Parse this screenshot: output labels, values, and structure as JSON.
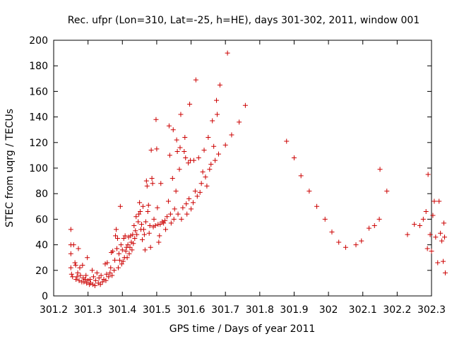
{
  "chart_data": {
    "type": "scatter",
    "title": "Rec. ufpr (Lon=310, Lat=-25, h=HE), days 301-302, 2011, window 001",
    "xlabel": "GPS time / Days of year 2011",
    "ylabel": "STEC from uqrg / TECUs",
    "xlim": [
      301.2,
      302.3
    ],
    "ylim": [
      0,
      200
    ],
    "xticks": [
      "301.2",
      "301.3",
      "301.4",
      "301.5",
      "301.6",
      "301.7",
      "301.8",
      "301.9",
      "302",
      "302.1",
      "302.2",
      "302.3"
    ],
    "yticks": [
      "0",
      "20",
      "40",
      "60",
      "80",
      "100",
      "120",
      "140",
      "160",
      "180",
      "200"
    ],
    "grid": false,
    "legend": "none",
    "marker": "plus",
    "color": "#cc0000",
    "series": [
      {
        "points": [
          [
            301.25,
            52
          ],
          [
            301.25,
            40
          ],
          [
            301.25,
            33
          ],
          [
            301.25,
            22
          ],
          [
            301.252,
            17
          ],
          [
            301.255,
            15
          ],
          [
            301.258,
            40
          ],
          [
            301.262,
            26
          ],
          [
            301.264,
            24
          ],
          [
            301.265,
            13
          ],
          [
            301.268,
            15
          ],
          [
            301.27,
            18
          ],
          [
            301.272,
            37
          ],
          [
            301.274,
            12
          ],
          [
            301.276,
            22
          ],
          [
            301.278,
            16
          ],
          [
            301.282,
            11
          ],
          [
            301.284,
            24
          ],
          [
            301.286,
            14
          ],
          [
            301.288,
            11
          ],
          [
            301.292,
            13
          ],
          [
            301.294,
            16
          ],
          [
            301.296,
            10
          ],
          [
            301.298,
            30
          ],
          [
            301.3,
            12
          ],
          [
            301.304,
            9
          ],
          [
            301.306,
            13
          ],
          [
            301.308,
            10
          ],
          [
            301.312,
            20
          ],
          [
            301.314,
            9
          ],
          [
            301.316,
            15
          ],
          [
            301.32,
            8
          ],
          [
            301.322,
            12
          ],
          [
            301.326,
            18
          ],
          [
            301.33,
            10
          ],
          [
            301.332,
            14
          ],
          [
            301.336,
            9
          ],
          [
            301.338,
            16
          ],
          [
            301.342,
            11
          ],
          [
            301.346,
            13
          ],
          [
            301.35,
            25
          ],
          [
            301.352,
            12
          ],
          [
            301.354,
            17
          ],
          [
            301.356,
            26
          ],
          [
            301.36,
            15
          ],
          [
            301.364,
            18
          ],
          [
            301.366,
            22
          ],
          [
            301.368,
            34
          ],
          [
            301.37,
            16
          ],
          [
            301.372,
            35
          ],
          [
            301.376,
            20
          ],
          [
            301.378,
            28
          ],
          [
            301.38,
            47
          ],
          [
            301.382,
            52
          ],
          [
            301.384,
            37
          ],
          [
            301.386,
            45
          ],
          [
            301.388,
            22
          ],
          [
            301.39,
            33
          ],
          [
            301.392,
            28
          ],
          [
            301.394,
            70
          ],
          [
            301.396,
            40
          ],
          [
            301.398,
            25
          ],
          [
            301.4,
            36
          ],
          [
            301.402,
            27
          ],
          [
            301.404,
            45
          ],
          [
            301.406,
            30
          ],
          [
            301.408,
            47
          ],
          [
            301.41,
            35
          ],
          [
            301.412,
            38
          ],
          [
            301.414,
            30
          ],
          [
            301.416,
            40
          ],
          [
            301.418,
            46
          ],
          [
            301.42,
            33
          ],
          [
            301.422,
            38
          ],
          [
            301.424,
            47
          ],
          [
            301.426,
            42
          ],
          [
            301.428,
            36
          ],
          [
            301.43,
            48
          ],
          [
            301.432,
            41
          ],
          [
            301.434,
            55
          ],
          [
            301.436,
            45
          ],
          [
            301.438,
            51
          ],
          [
            301.44,
            62
          ],
          [
            301.442,
            48
          ],
          [
            301.446,
            58
          ],
          [
            301.448,
            64
          ],
          [
            301.45,
            73
          ],
          [
            301.452,
            66
          ],
          [
            301.454,
            52
          ],
          [
            301.456,
            56
          ],
          [
            301.458,
            44
          ],
          [
            301.46,
            70
          ],
          [
            301.462,
            52
          ],
          [
            301.464,
            48
          ],
          [
            301.466,
            36
          ],
          [
            301.468,
            58
          ],
          [
            301.47,
            90
          ],
          [
            301.472,
            86
          ],
          [
            301.474,
            66
          ],
          [
            301.476,
            71
          ],
          [
            301.478,
            49
          ],
          [
            301.48,
            55
          ],
          [
            301.482,
            38
          ],
          [
            301.484,
            114
          ],
          [
            301.486,
            92
          ],
          [
            301.488,
            88
          ],
          [
            301.49,
            54
          ],
          [
            301.492,
            60
          ],
          [
            301.496,
            55
          ],
          [
            301.498,
            138
          ],
          [
            301.5,
            115
          ],
          [
            301.502,
            69
          ],
          [
            301.504,
            56
          ],
          [
            301.506,
            42
          ],
          [
            301.508,
            47
          ],
          [
            301.51,
            56
          ],
          [
            301.512,
            88
          ],
          [
            301.516,
            58
          ],
          [
            301.52,
            57
          ],
          [
            301.524,
            59
          ],
          [
            301.526,
            52
          ],
          [
            301.53,
            62
          ],
          [
            301.534,
            74
          ],
          [
            301.536,
            133
          ],
          [
            301.538,
            110
          ],
          [
            301.54,
            64
          ],
          [
            301.542,
            57
          ],
          [
            301.546,
            92
          ],
          [
            301.548,
            130
          ],
          [
            301.55,
            60
          ],
          [
            301.552,
            68
          ],
          [
            301.556,
            82
          ],
          [
            301.558,
            122
          ],
          [
            301.56,
            113
          ],
          [
            301.562,
            64
          ],
          [
            301.566,
            99
          ],
          [
            301.568,
            116
          ],
          [
            301.57,
            142
          ],
          [
            301.572,
            60
          ],
          [
            301.576,
            69
          ],
          [
            301.58,
            113
          ],
          [
            301.582,
            124
          ],
          [
            301.584,
            108
          ],
          [
            301.586,
            72
          ],
          [
            301.588,
            64
          ],
          [
            301.592,
            104
          ],
          [
            301.594,
            76
          ],
          [
            301.596,
            150
          ],
          [
            301.598,
            106
          ],
          [
            301.6,
            68
          ],
          [
            301.606,
            73
          ],
          [
            301.608,
            106
          ],
          [
            301.612,
            82
          ],
          [
            301.614,
            169
          ],
          [
            301.618,
            78
          ],
          [
            301.622,
            108
          ],
          [
            301.626,
            81
          ],
          [
            301.63,
            88
          ],
          [
            301.634,
            97
          ],
          [
            301.638,
            114
          ],
          [
            301.642,
            93
          ],
          [
            301.646,
            86
          ],
          [
            301.65,
            124
          ],
          [
            301.654,
            99
          ],
          [
            301.658,
            103
          ],
          [
            301.662,
            137
          ],
          [
            301.666,
            117
          ],
          [
            301.67,
            106
          ],
          [
            301.674,
            153
          ],
          [
            301.676,
            142
          ],
          [
            301.68,
            111
          ],
          [
            301.684,
            165
          ],
          [
            301.7,
            118
          ],
          [
            301.706,
            190
          ],
          [
            301.718,
            126
          ],
          [
            301.74,
            136
          ],
          [
            301.758,
            149
          ],
          [
            301.878,
            121
          ],
          [
            301.9,
            108
          ],
          [
            301.92,
            94
          ],
          [
            301.944,
            82
          ],
          [
            301.966,
            70
          ],
          [
            301.99,
            60
          ],
          [
            302.01,
            50
          ],
          [
            302.03,
            42
          ],
          [
            302.05,
            38
          ],
          [
            302.08,
            40
          ],
          [
            302.096,
            43
          ],
          [
            302.118,
            53
          ],
          [
            302.134,
            55
          ],
          [
            302.148,
            60
          ],
          [
            302.15,
            99
          ],
          [
            302.17,
            82
          ],
          [
            302.23,
            48
          ],
          [
            302.25,
            56
          ],
          [
            302.266,
            55
          ],
          [
            302.276,
            60
          ],
          [
            302.284,
            66
          ],
          [
            302.288,
            37
          ],
          [
            302.29,
            95
          ],
          [
            302.296,
            48
          ],
          [
            302.3,
            35
          ],
          [
            302.304,
            63
          ],
          [
            302.308,
            74
          ],
          [
            302.312,
            46
          ],
          [
            302.318,
            26
          ],
          [
            302.322,
            74
          ],
          [
            302.326,
            49
          ],
          [
            302.33,
            43
          ],
          [
            302.334,
            27
          ],
          [
            302.336,
            57
          ],
          [
            302.338,
            46
          ],
          [
            302.34,
            18
          ]
        ]
      }
    ]
  }
}
